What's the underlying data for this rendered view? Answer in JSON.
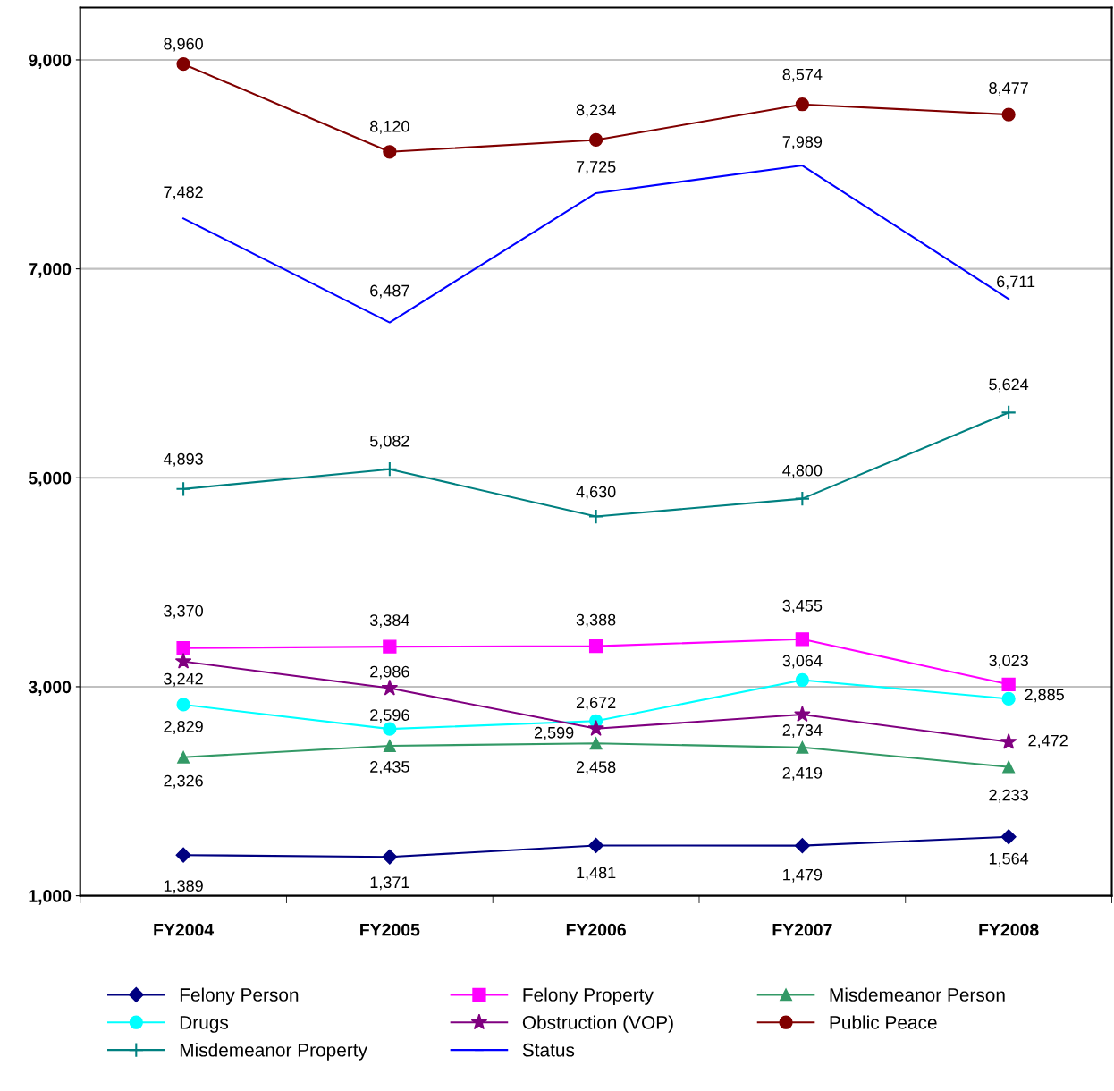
{
  "chart_data": {
    "type": "line",
    "categories": [
      "FY2004",
      "FY2005",
      "FY2006",
      "FY2007",
      "FY2008"
    ],
    "series": [
      {
        "name": "Felony Person",
        "color": "#000080",
        "marker": "diamond",
        "values": [
          1389,
          1371,
          1481,
          1479,
          1564
        ],
        "value_labels": [
          "1,389",
          "1,371",
          "1,481",
          "1,479",
          "1,564"
        ]
      },
      {
        "name": "Felony Property",
        "color": "#ff00ff",
        "marker": "square",
        "values": [
          3370,
          3384,
          3388,
          3455,
          3023
        ],
        "value_labels": [
          "3,370",
          "3,384",
          "3,388",
          "3,455",
          "3,023"
        ]
      },
      {
        "name": "Misdemeanor Person",
        "color": "#339966",
        "marker": "triangle",
        "values": [
          2326,
          2435,
          2458,
          2419,
          2233
        ],
        "value_labels": [
          "2,326",
          "2,435",
          "2,458",
          "2,419",
          "2,233"
        ]
      },
      {
        "name": "Drugs",
        "color": "#00ffff",
        "marker": "circle",
        "values": [
          2829,
          2596,
          2672,
          3064,
          2885
        ],
        "value_labels": [
          "2,829",
          "2,596",
          "2,672",
          "3,064",
          "2,885"
        ]
      },
      {
        "name": "Obstruction (VOP)",
        "color": "#800080",
        "marker": "star",
        "values": [
          3242,
          2986,
          2599,
          2734,
          2472
        ],
        "value_labels": [
          "3,242",
          "2,986",
          "2,599",
          "2,734",
          "2,472"
        ]
      },
      {
        "name": "Public Peace",
        "color": "#800000",
        "marker": "circle",
        "values": [
          8960,
          8120,
          8234,
          8574,
          8477
        ],
        "value_labels": [
          "8,960",
          "8,120",
          "8,234",
          "8,574",
          "8,477"
        ]
      },
      {
        "name": "Misdemeanor Property",
        "color": "#008080",
        "marker": "cross",
        "values": [
          4893,
          5082,
          4630,
          4800,
          5624
        ],
        "value_labels": [
          "4,893",
          "5,082",
          "4,630",
          "4,800",
          "5,624"
        ]
      },
      {
        "name": "Status",
        "color": "#0000ff",
        "marker": "none",
        "values": [
          7482,
          6487,
          7725,
          7989,
          6711
        ],
        "value_labels": [
          "7,482",
          "6,487",
          "7,725",
          "7,989",
          "6,711"
        ]
      }
    ],
    "ylim": [
      1000,
      9500
    ],
    "yticks": [
      {
        "value": 1000,
        "label": "1,000"
      },
      {
        "value": 3000,
        "label": "3,000"
      },
      {
        "value": 5000,
        "label": "5,000"
      },
      {
        "value": 7000,
        "label": "7,000"
      },
      {
        "value": 9000,
        "label": "9,000"
      }
    ],
    "grid": "y",
    "legend": "bottom",
    "line_style": "solid"
  }
}
